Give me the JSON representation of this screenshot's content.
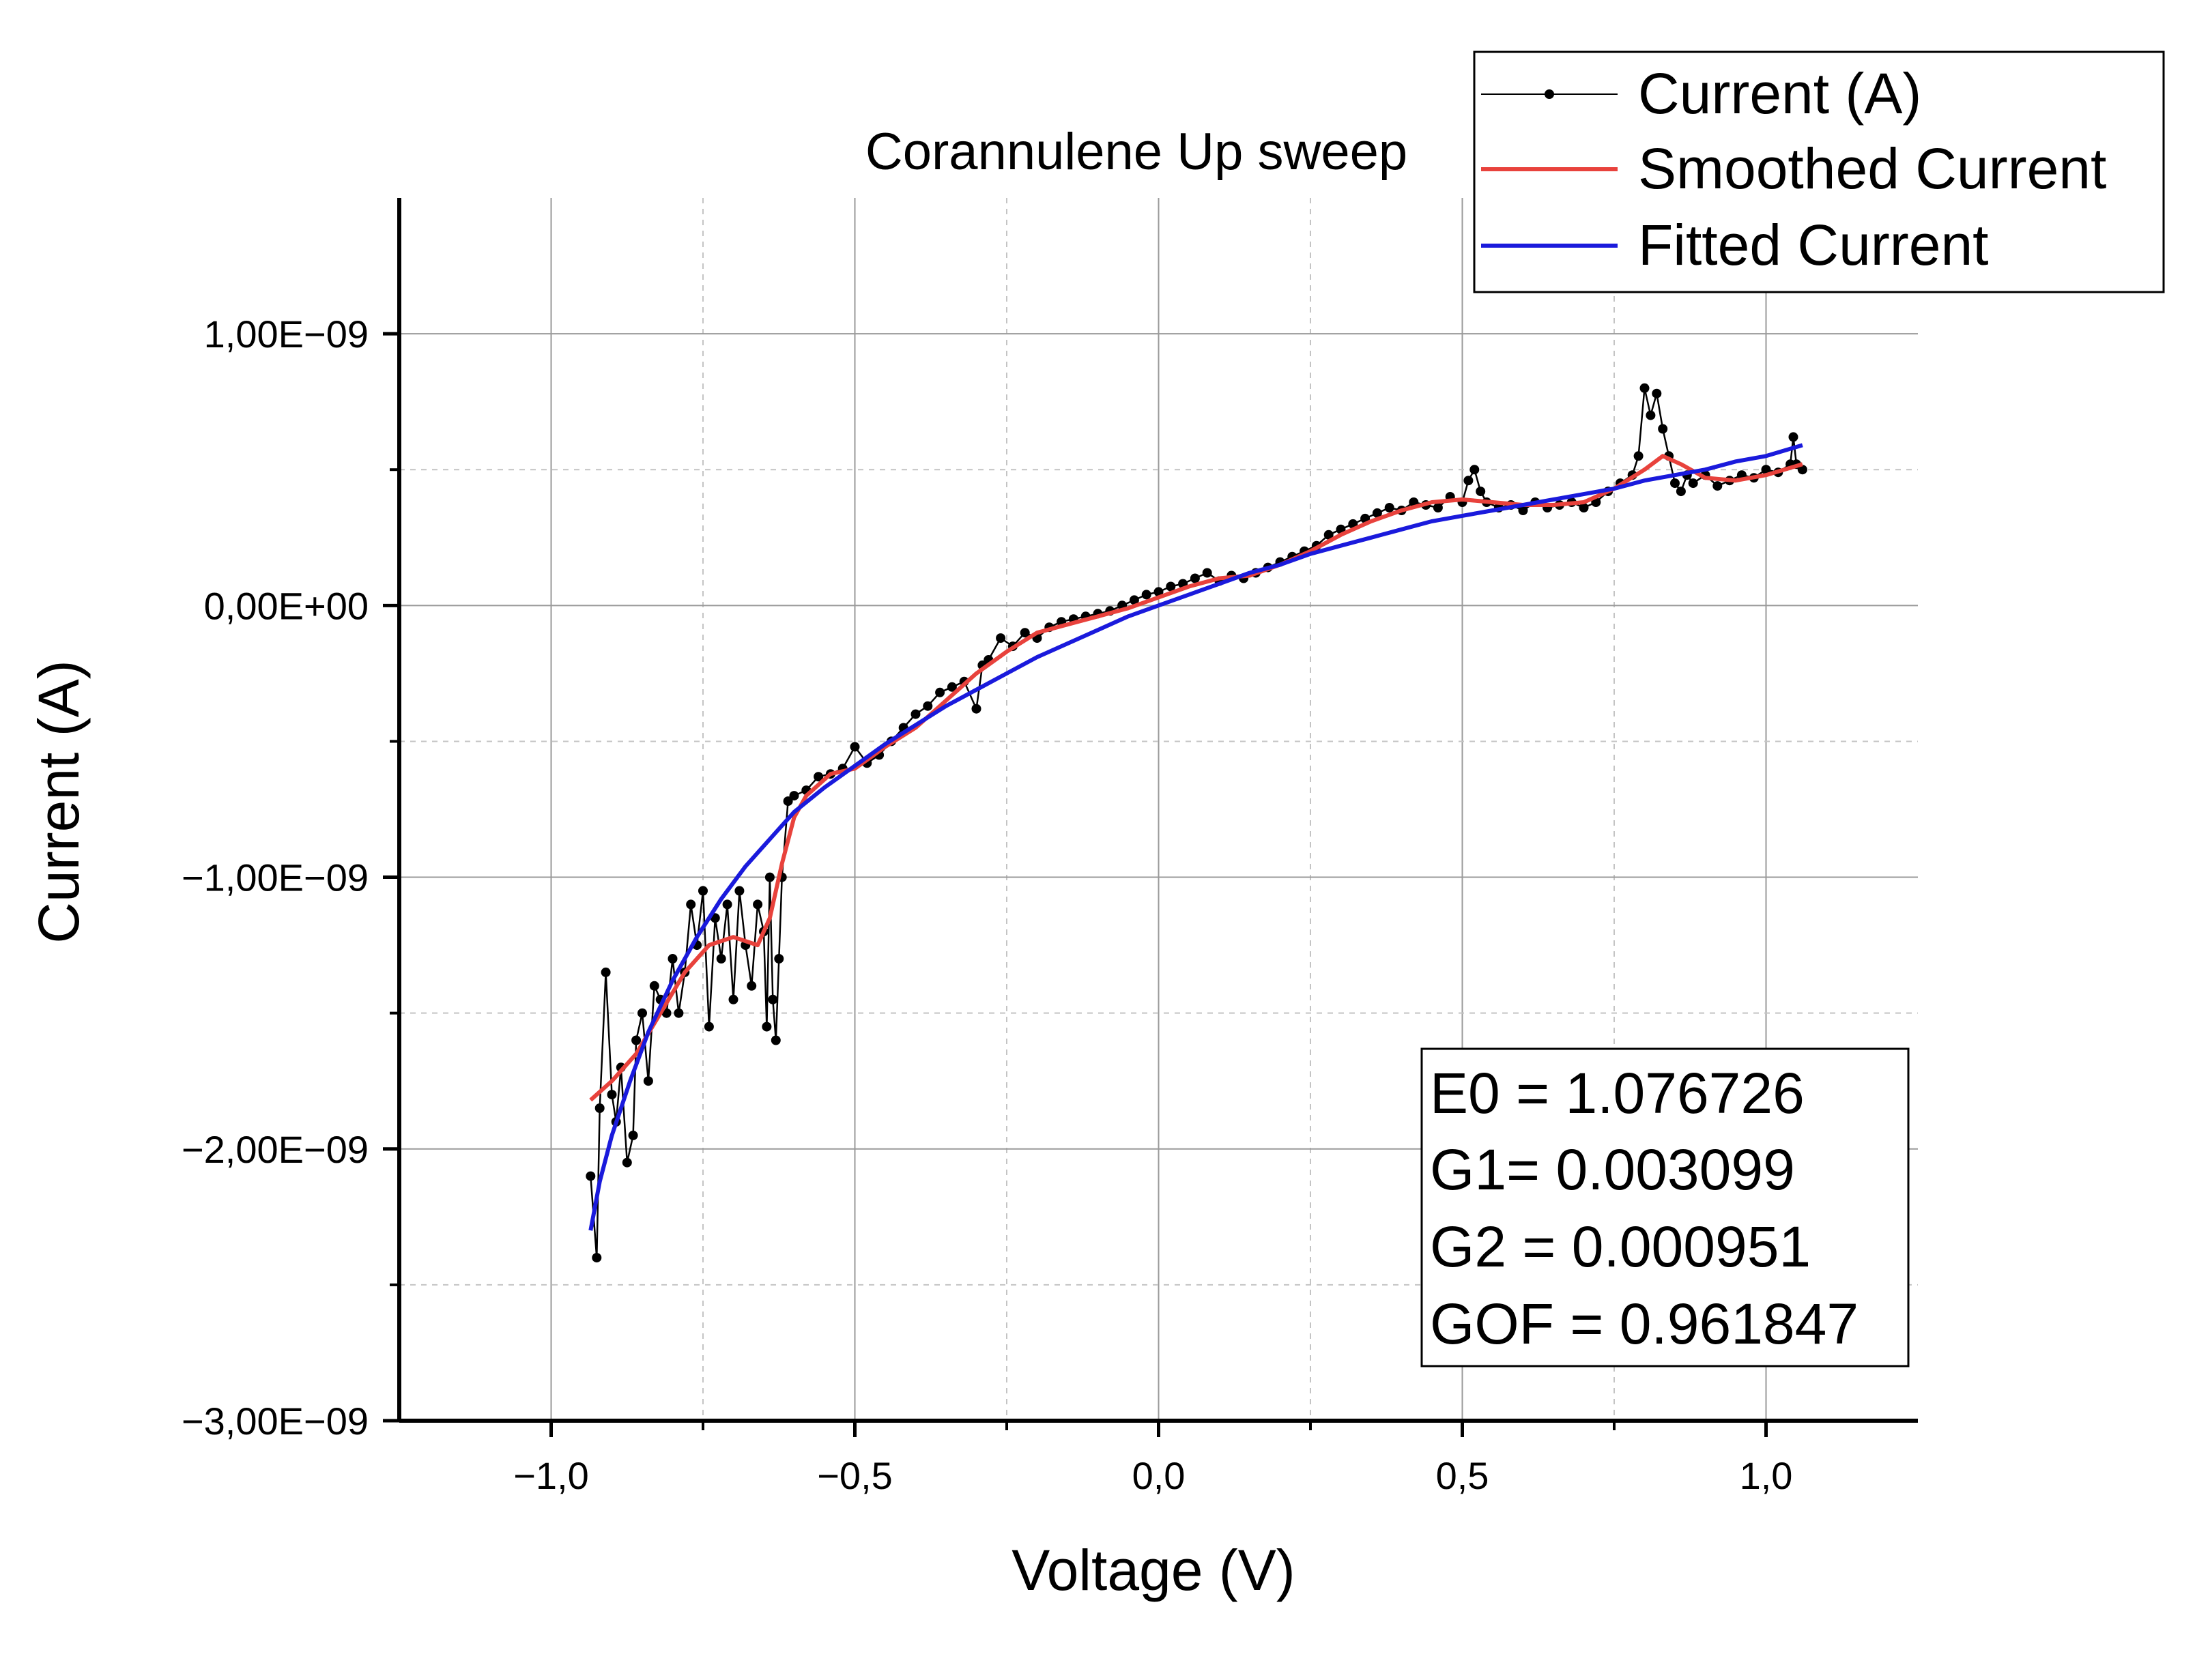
{
  "chart_data": {
    "type": "line",
    "title": "Corannulene Up sweep",
    "xlabel": "Voltage (V)",
    "ylabel": "Current (A)",
    "xlim": [
      -1.25,
      1.25
    ],
    "ylim": [
      -3e-09,
      1.5e-09
    ],
    "x_ticks": [
      -1.0,
      -0.5,
      0.0,
      0.5,
      1.0
    ],
    "x_tick_labels": [
      "−1,0",
      "−0,5",
      "0,0",
      "0,5",
      "1,0"
    ],
    "x_minor_ticks": [
      -0.75,
      -0.25,
      0.25,
      0.75
    ],
    "y_ticks": [
      1e-09,
      0.0,
      -1e-09,
      -2e-09,
      -3e-09
    ],
    "y_tick_labels": [
      "1,00E−09",
      "0,00E+00",
      "−1,00E−09",
      "−2,00E−09",
      "−3,00E−09"
    ],
    "y_minor_ticks": [
      5e-10,
      -5e-10,
      -1.5e-09,
      -2.5e-09
    ],
    "grid": true,
    "legend_position": "top-right",
    "series": [
      {
        "name": "Current (A)",
        "color": "#000000",
        "style": "line-with-markers",
        "x": [
          -0.935,
          -0.925,
          -0.92,
          -0.91,
          -0.9,
          -0.893,
          -0.885,
          -0.875,
          -0.865,
          -0.86,
          -0.85,
          -0.84,
          -0.83,
          -0.82,
          -0.81,
          -0.8,
          -0.79,
          -0.78,
          -0.77,
          -0.76,
          -0.75,
          -0.74,
          -0.73,
          -0.72,
          -0.71,
          -0.7,
          -0.69,
          -0.68,
          -0.67,
          -0.66,
          -0.65,
          -0.645,
          -0.64,
          -0.635,
          -0.63,
          -0.625,
          -0.62,
          -0.61,
          -0.6,
          -0.58,
          -0.56,
          -0.54,
          -0.52,
          -0.5,
          -0.48,
          -0.46,
          -0.44,
          -0.42,
          -0.4,
          -0.38,
          -0.36,
          -0.34,
          -0.32,
          -0.3,
          -0.29,
          -0.28,
          -0.26,
          -0.24,
          -0.22,
          -0.2,
          -0.18,
          -0.16,
          -0.14,
          -0.12,
          -0.1,
          -0.08,
          -0.06,
          -0.04,
          -0.02,
          0.0,
          0.02,
          0.04,
          0.06,
          0.08,
          0.1,
          0.12,
          0.14,
          0.16,
          0.18,
          0.2,
          0.22,
          0.24,
          0.26,
          0.28,
          0.3,
          0.32,
          0.34,
          0.36,
          0.38,
          0.4,
          0.42,
          0.44,
          0.46,
          0.48,
          0.5,
          0.51,
          0.52,
          0.53,
          0.54,
          0.56,
          0.58,
          0.6,
          0.62,
          0.64,
          0.66,
          0.68,
          0.7,
          0.72,
          0.74,
          0.76,
          0.78,
          0.79,
          0.8,
          0.81,
          0.82,
          0.83,
          0.84,
          0.85,
          0.86,
          0.87,
          0.88,
          0.9,
          0.92,
          0.94,
          0.96,
          0.98,
          1.0,
          1.02,
          1.04,
          1.045,
          1.05,
          1.06
        ],
        "y": [
          -2.1e-09,
          -2.4e-09,
          -1.85e-09,
          -1.35e-09,
          -1.8e-09,
          -1.9e-09,
          -1.7e-09,
          -2.05e-09,
          -1.95e-09,
          -1.6e-09,
          -1.5e-09,
          -1.75e-09,
          -1.4e-09,
          -1.45e-09,
          -1.5e-09,
          -1.3e-09,
          -1.5e-09,
          -1.35e-09,
          -1.1e-09,
          -1.25e-09,
          -1.05e-09,
          -1.55e-09,
          -1.15e-09,
          -1.3e-09,
          -1.1e-09,
          -1.45e-09,
          -1.05e-09,
          -1.25e-09,
          -1.4e-09,
          -1.1e-09,
          -1.2e-09,
          -1.55e-09,
          -1e-09,
          -1.45e-09,
          -1.6e-09,
          -1.3e-09,
          -1e-09,
          -7.2e-10,
          -7e-10,
          -6.8e-10,
          -6.3e-10,
          -6.2e-10,
          -6e-10,
          -5.2e-10,
          -5.8e-10,
          -5.5e-10,
          -5e-10,
          -4.5e-10,
          -4e-10,
          -3.7e-10,
          -3.2e-10,
          -3e-10,
          -2.8e-10,
          -3.8e-10,
          -2.2e-10,
          -2e-10,
          -1.2e-10,
          -1.5e-10,
          -1e-10,
          -1.2e-10,
          -8e-11,
          -6e-11,
          -5e-11,
          -4e-11,
          -3e-11,
          -2e-11,
          0.0,
          2e-11,
          4e-11,
          5e-11,
          7e-11,
          8e-11,
          1e-10,
          1.2e-10,
          9e-11,
          1.1e-10,
          1e-10,
          1.2e-10,
          1.4e-10,
          1.6e-10,
          1.8e-10,
          2e-10,
          2.2e-10,
          2.6e-10,
          2.8e-10,
          3e-10,
          3.2e-10,
          3.4e-10,
          3.6e-10,
          3.5e-10,
          3.8e-10,
          3.7e-10,
          3.6e-10,
          4e-10,
          3.8e-10,
          4.6e-10,
          5e-10,
          4.2e-10,
          3.8e-10,
          3.6e-10,
          3.7e-10,
          3.5e-10,
          3.8e-10,
          3.6e-10,
          3.7e-10,
          3.8e-10,
          3.6e-10,
          3.8e-10,
          4.2e-10,
          4.5e-10,
          4.8e-10,
          5.5e-10,
          8e-10,
          7e-10,
          7.8e-10,
          6.5e-10,
          5.5e-10,
          4.5e-10,
          4.2e-10,
          4.8e-10,
          4.5e-10,
          4.8e-10,
          4.4e-10,
          4.6e-10,
          4.8e-10,
          4.7e-10,
          5e-10,
          4.9e-10,
          5.2e-10,
          6.2e-10,
          5.2e-10,
          5e-10
        ]
      },
      {
        "name": "Smoothed Current",
        "color": "#e8423c",
        "style": "line",
        "x": [
          -0.935,
          -0.9,
          -0.86,
          -0.82,
          -0.78,
          -0.74,
          -0.7,
          -0.66,
          -0.64,
          -0.62,
          -0.6,
          -0.58,
          -0.54,
          -0.5,
          -0.45,
          -0.4,
          -0.35,
          -0.3,
          -0.25,
          -0.2,
          -0.15,
          -0.1,
          -0.05,
          0.0,
          0.05,
          0.1,
          0.15,
          0.2,
          0.25,
          0.3,
          0.35,
          0.4,
          0.45,
          0.5,
          0.55,
          0.6,
          0.65,
          0.7,
          0.75,
          0.8,
          0.83,
          0.86,
          0.9,
          0.95,
          1.0,
          1.06
        ],
        "y": [
          -1.82e-09,
          -1.75e-09,
          -1.65e-09,
          -1.5e-09,
          -1.35e-09,
          -1.25e-09,
          -1.22e-09,
          -1.25e-09,
          -1.15e-09,
          -9.5e-10,
          -7.8e-10,
          -7e-10,
          -6.2e-10,
          -6e-10,
          -5.2e-10,
          -4.5e-10,
          -3.5e-10,
          -2.5e-10,
          -1.7e-10,
          -1e-10,
          -7e-11,
          -4e-11,
          -1e-11,
          3e-11,
          7e-11,
          1e-10,
          1.1e-10,
          1.5e-10,
          2e-10,
          2.6e-10,
          3.1e-10,
          3.5e-10,
          3.8e-10,
          3.9e-10,
          3.8e-10,
          3.7e-10,
          3.7e-10,
          3.8e-10,
          4.3e-10,
          5e-10,
          5.5e-10,
          5.2e-10,
          4.7e-10,
          4.6e-10,
          4.8e-10,
          5.2e-10
        ]
      },
      {
        "name": "Fitted Current",
        "color": "#1a1adc",
        "style": "line",
        "x": [
          -0.935,
          -0.92,
          -0.9,
          -0.87,
          -0.84,
          -0.8,
          -0.76,
          -0.72,
          -0.68,
          -0.64,
          -0.6,
          -0.55,
          -0.5,
          -0.45,
          -0.4,
          -0.35,
          -0.3,
          -0.25,
          -0.2,
          -0.15,
          -0.1,
          -0.05,
          0.0,
          0.05,
          0.1,
          0.15,
          0.2,
          0.25,
          0.3,
          0.35,
          0.4,
          0.45,
          0.5,
          0.55,
          0.6,
          0.65,
          0.7,
          0.75,
          0.8,
          0.85,
          0.9,
          0.95,
          1.0,
          1.06
        ],
        "y": [
          -2.3e-09,
          -2.12e-09,
          -1.95e-09,
          -1.75e-09,
          -1.57e-09,
          -1.38e-09,
          -1.22e-09,
          -1.08e-09,
          -9.6e-10,
          -8.6e-10,
          -7.6e-10,
          -6.7e-10,
          -5.9e-10,
          -5.1e-10,
          -4.4e-10,
          -3.7e-10,
          -3.1e-10,
          -2.5e-10,
          -1.9e-10,
          -1.4e-10,
          -9e-11,
          -4e-11,
          0.0,
          4e-11,
          8e-11,
          1.2e-10,
          1.5e-10,
          1.9e-10,
          2.2e-10,
          2.5e-10,
          2.8e-10,
          3.1e-10,
          3.3e-10,
          3.5e-10,
          3.7e-10,
          3.9e-10,
          4.1e-10,
          4.3e-10,
          4.6e-10,
          4.8e-10,
          5e-10,
          5.3e-10,
          5.5e-10,
          5.9e-10
        ]
      }
    ],
    "annotation": [
      "E0 = 1.076726",
      "G1= 0.003099",
      "G2 = 0.000951",
      "GOF = 0.961847"
    ]
  }
}
